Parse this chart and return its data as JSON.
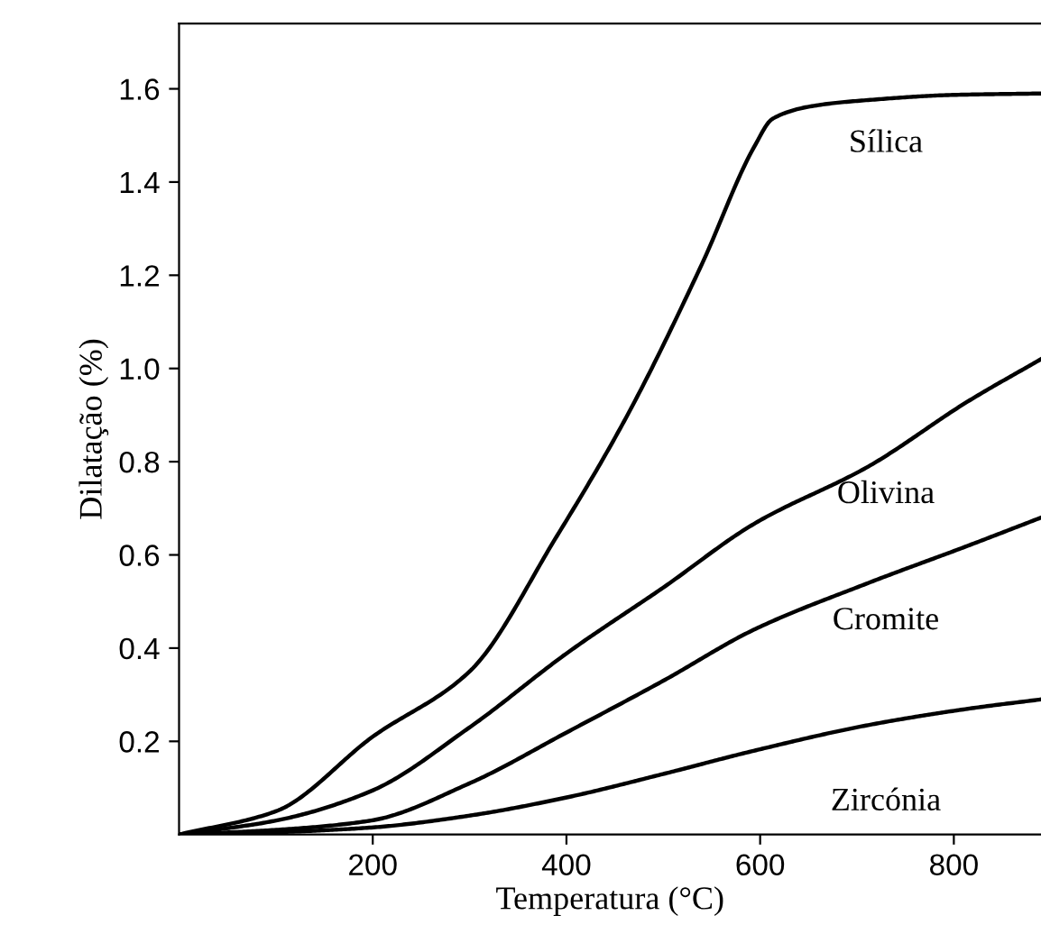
{
  "chart_data": {
    "type": "line",
    "xlabel": "Temperatura (°C)",
    "ylabel": "Dilatação (%)",
    "xlim": [
      0,
      890
    ],
    "ylim": [
      0,
      1.74
    ],
    "xticks": [
      200,
      400,
      600,
      800
    ],
    "yticks": [
      0.2,
      0.4,
      0.6,
      0.8,
      {
        "value": 1,
        "label": "1.0"
      },
      1.2,
      1.4,
      1.6
    ],
    "grid": false,
    "legend": false,
    "marker": "none",
    "line_style": "solid",
    "series": [
      {
        "name": "Sílica",
        "color": "#000000",
        "x": [
          0,
          100,
          200,
          300,
          390,
          463,
          539,
          594,
          613,
          660,
          712,
          800,
          890
        ],
        "values": [
          0,
          0.05,
          0.21,
          0.35,
          0.64,
          0.9,
          1.22,
          1.476,
          1.536,
          1.565,
          1.576,
          1.587,
          1.59
        ]
      },
      {
        "name": "Olivina",
        "color": "#000000",
        "x": [
          0,
          100,
          198,
          300,
          401,
          500,
          594,
          712,
          815,
          890
        ],
        "values": [
          0,
          0.03,
          0.093,
          0.23,
          0.39,
          0.53,
          0.667,
          0.79,
          0.93,
          1.02
        ]
      },
      {
        "name": "Cromite",
        "color": "#000000",
        "x": [
          0,
          100,
          198,
          300,
          401,
          500,
          594,
          712,
          815,
          890
        ],
        "values": [
          0,
          0.01,
          0.03,
          0.11,
          0.22,
          0.33,
          0.44,
          0.54,
          0.62,
          0.68
        ]
      },
      {
        "name": "Zircónia",
        "color": "#000000",
        "x": [
          0,
          100,
          198,
          298,
          401,
          500,
          594,
          712,
          815,
          890
        ],
        "values": [
          0,
          0.005,
          0.015,
          0.04,
          0.08,
          0.13,
          0.18,
          0.235,
          0.27,
          0.29
        ]
      }
    ]
  }
}
